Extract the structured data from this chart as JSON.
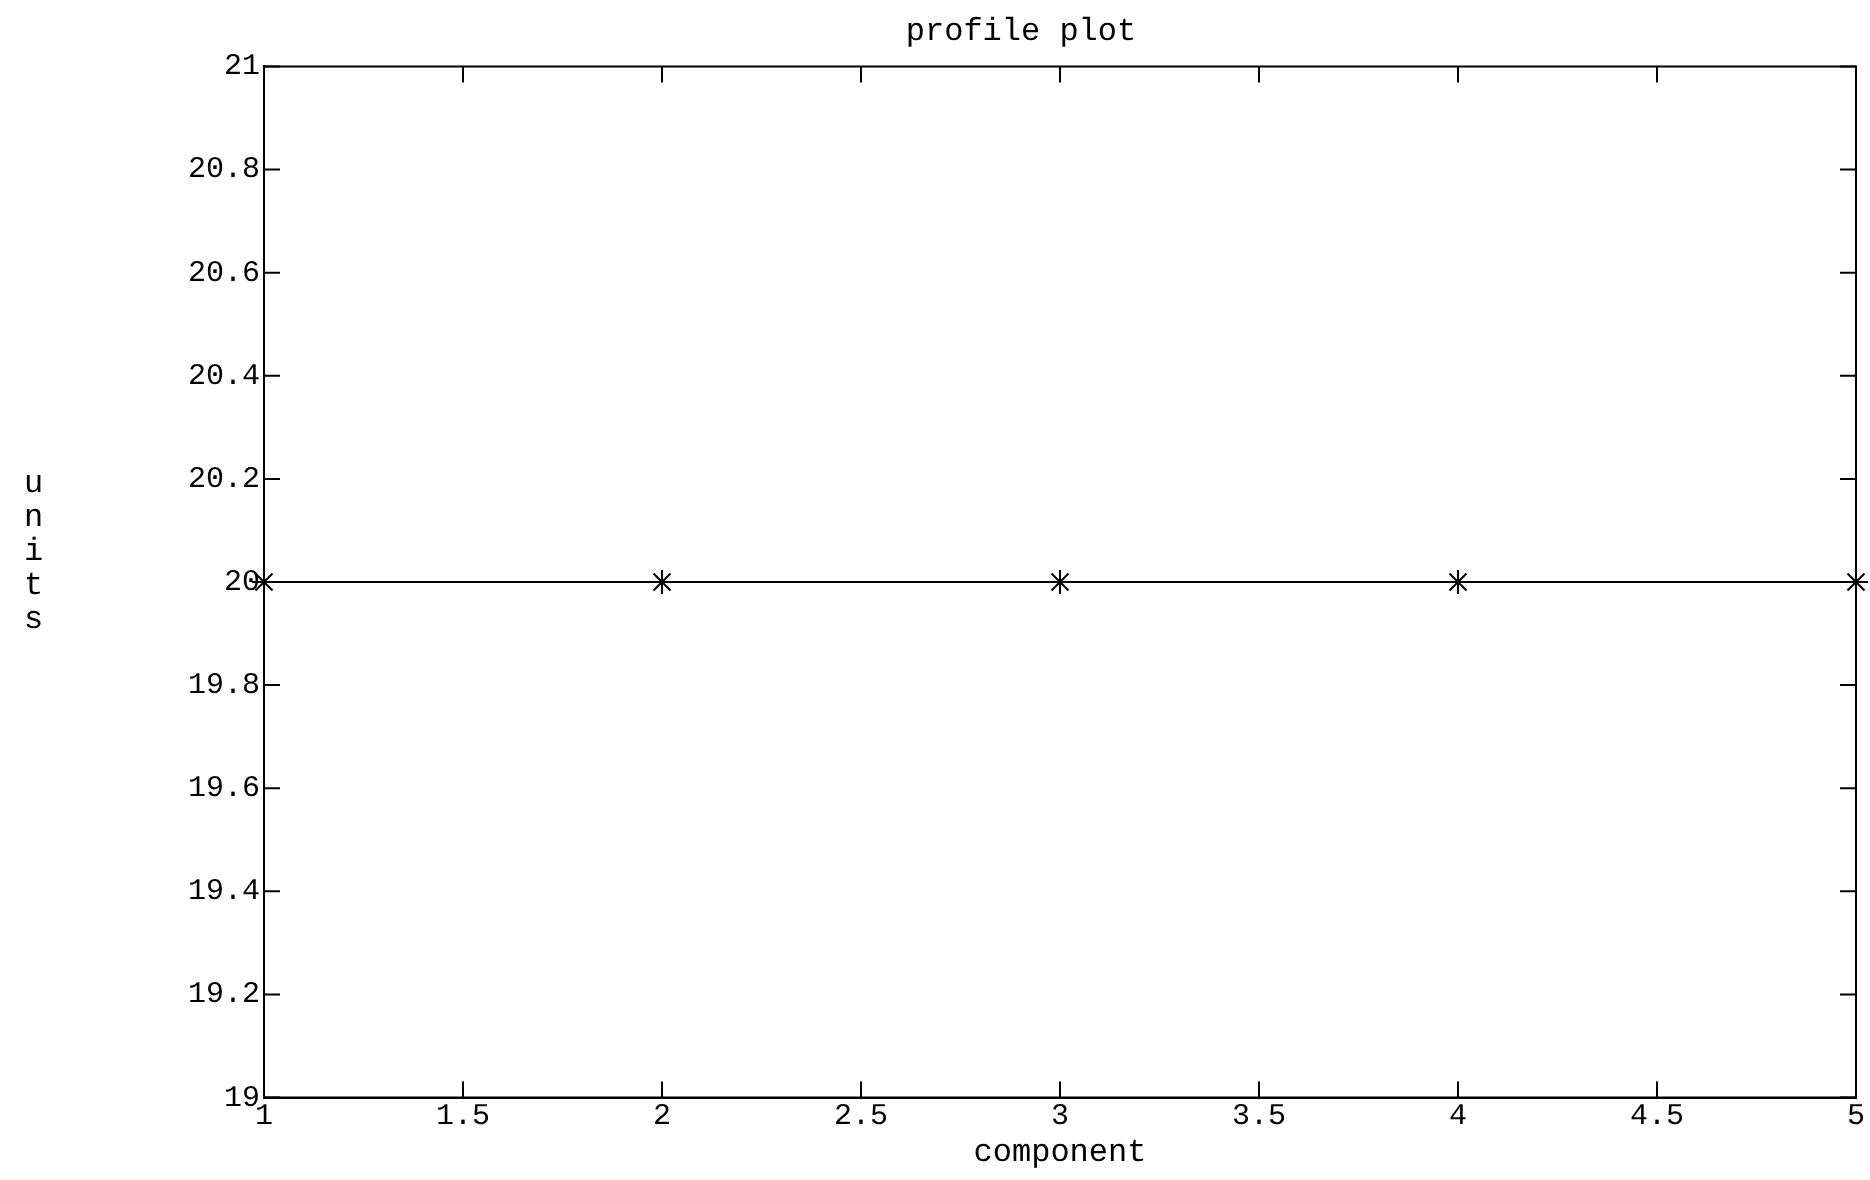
{
  "chart_data": {
    "type": "line",
    "title": "profile plot",
    "xlabel": "component",
    "ylabel": "units",
    "x": [
      1,
      2,
      3,
      4,
      5
    ],
    "series": [
      {
        "color": "#000000",
        "values": [
          20,
          20,
          20,
          20,
          20
        ]
      }
    ],
    "xlim": [
      1,
      5
    ],
    "xticks": [
      1,
      1.5,
      2,
      2.5,
      3,
      3.5,
      4,
      4.5,
      5
    ],
    "ylim": [
      19,
      21
    ],
    "yticks": [
      19,
      19.2,
      19.4,
      19.6,
      19.8,
      20,
      20.2,
      20.4,
      20.6,
      20.8,
      21
    ],
    "grid": false,
    "legend": false,
    "marker": "cross",
    "line_style": "solid"
  }
}
